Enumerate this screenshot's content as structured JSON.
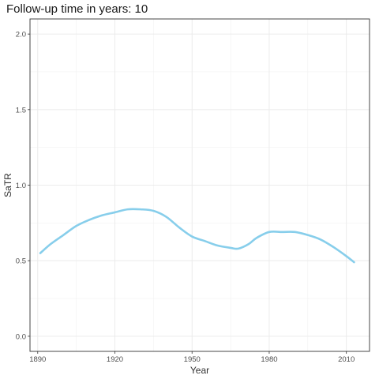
{
  "chart_data": {
    "type": "line",
    "title": "Follow-up time in years: 10",
    "xlabel": "Year",
    "ylabel": "SaTR",
    "xlim": [
      1887,
      2019
    ],
    "ylim": [
      -0.1,
      2.1
    ],
    "x_ticks": [
      1890,
      1920,
      1950,
      1980,
      2010
    ],
    "y_ticks": [
      0.0,
      0.5,
      1.0,
      1.5,
      2.0
    ],
    "y_tick_labels": [
      "0.0",
      "0.5",
      "1.0",
      "1.5",
      "2.0"
    ],
    "grid": true,
    "series": [
      {
        "color": "#87CEEB",
        "x": [
          1891,
          1895,
          1900,
          1905,
          1910,
          1915,
          1920,
          1925,
          1930,
          1935,
          1940,
          1945,
          1950,
          1955,
          1960,
          1965,
          1968,
          1972,
          1975,
          1980,
          1985,
          1990,
          1995,
          2000,
          2005,
          2010,
          2013
        ],
        "y": [
          0.55,
          0.61,
          0.67,
          0.73,
          0.77,
          0.8,
          0.82,
          0.84,
          0.84,
          0.83,
          0.79,
          0.72,
          0.66,
          0.63,
          0.6,
          0.585,
          0.58,
          0.61,
          0.65,
          0.69,
          0.69,
          0.69,
          0.67,
          0.64,
          0.59,
          0.53,
          0.49
        ]
      }
    ]
  }
}
